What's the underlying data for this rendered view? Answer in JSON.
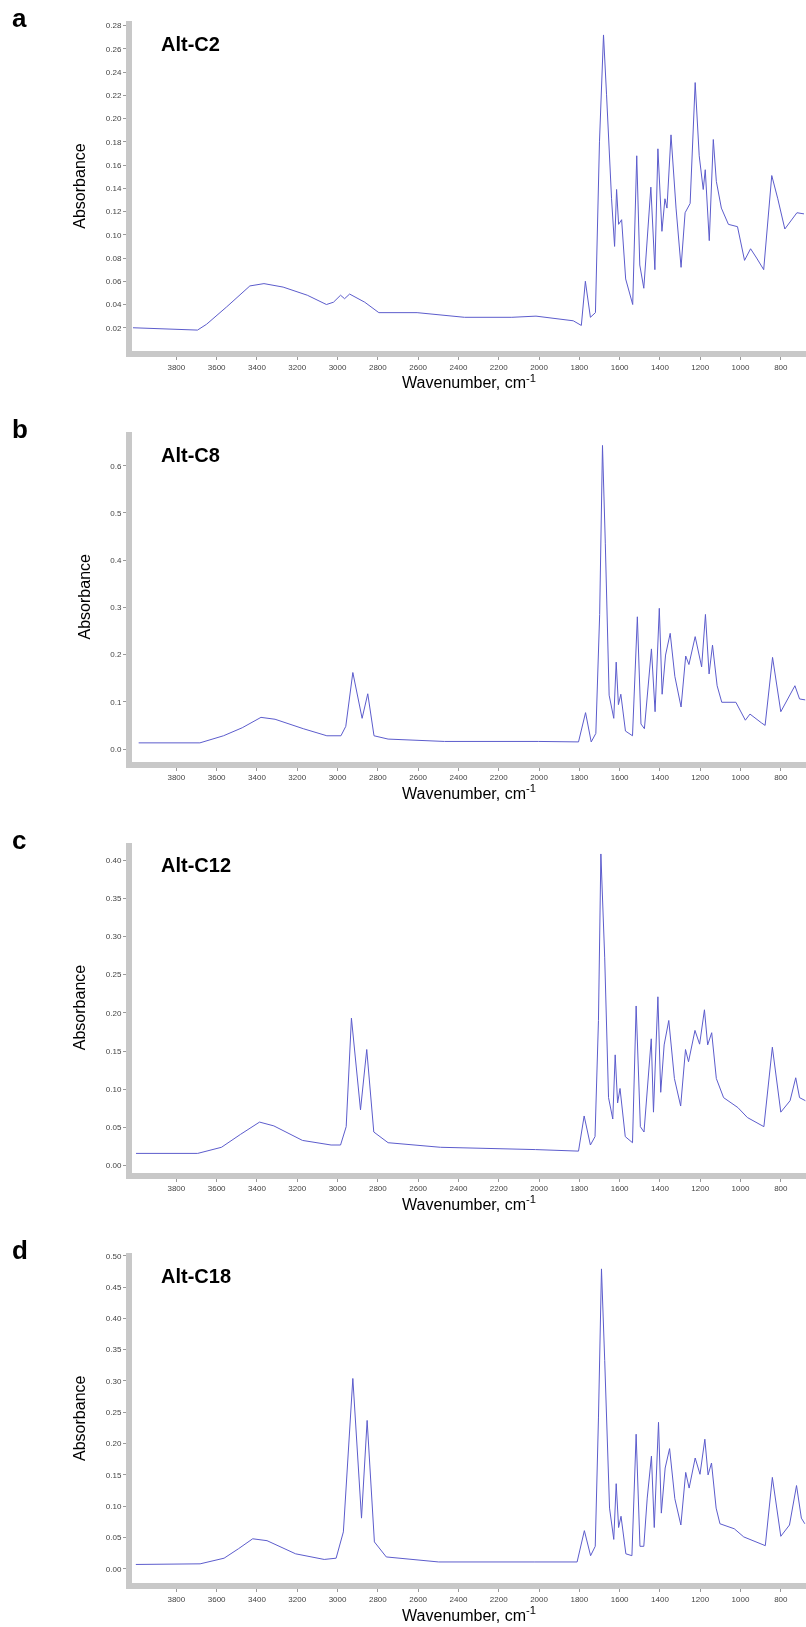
{
  "chart_data": [
    {
      "type": "line",
      "title": "Alt-C2",
      "annotations": [
        "a"
      ],
      "xlabel": "Wavenumber, cm$^{-1}$",
      "ylabel": "Absorbance",
      "color": "#5c5ccc",
      "grid": false,
      "marker": "none",
      "line_style": "solid",
      "x": [
        4015,
        3695,
        3650,
        3550,
        3435,
        3365,
        3270,
        3150,
        3055,
        3020,
        2985,
        2965,
        2940,
        2865,
        2795,
        2605,
        2370,
        2135,
        2015,
        1830,
        1790,
        1770,
        1745,
        1720,
        1700,
        1680,
        1665,
        1640,
        1625,
        1615,
        1605,
        1590,
        1570,
        1535,
        1515,
        1500,
        1480,
        1445,
        1425,
        1410,
        1390,
        1375,
        1365,
        1345,
        1320,
        1295,
        1275,
        1250,
        1225,
        1205,
        1185,
        1175,
        1155,
        1135,
        1120,
        1095,
        1060,
        1015,
        980,
        950,
        920,
        885,
        845,
        815,
        780,
        720,
        685
      ],
      "values": [
        0.02,
        0.018,
        0.023,
        0.038,
        0.056,
        0.058,
        0.055,
        0.048,
        0.04,
        0.042,
        0.048,
        0.045,
        0.049,
        0.042,
        0.033,
        0.033,
        0.029,
        0.029,
        0.03,
        0.026,
        0.022,
        0.06,
        0.029,
        0.033,
        0.18,
        0.272,
        0.221,
        0.131,
        0.09,
        0.139,
        0.109,
        0.113,
        0.062,
        0.04,
        0.168,
        0.074,
        0.054,
        0.141,
        0.07,
        0.174,
        0.103,
        0.131,
        0.123,
        0.186,
        0.123,
        0.072,
        0.119,
        0.127,
        0.231,
        0.168,
        0.139,
        0.156,
        0.095,
        0.182,
        0.146,
        0.123,
        0.109,
        0.107,
        0.078,
        0.088,
        0.08,
        0.07,
        0.151,
        0.131,
        0.105,
        0.119,
        0.118
      ],
      "xlim": [
        4020,
        675
      ],
      "xticks": [
        3800,
        3600,
        3400,
        3200,
        3000,
        2800,
        2600,
        2400,
        2200,
        2000,
        1800,
        1600,
        1400,
        1200,
        1000,
        800
      ],
      "ylim": [
        0.0,
        0.284
      ],
      "yticks": [
        0.02,
        0.04,
        0.06,
        0.08,
        {
          "value": 0.1,
          "label": "0.10"
        },
        0.12,
        0.14,
        0.16,
        0.18,
        {
          "value": 0.2,
          "label": "0.20"
        },
        0.22,
        0.24,
        0.26,
        0.28
      ]
    },
    {
      "type": "line",
      "title": "Alt-C8",
      "annotations": [
        "b"
      ],
      "xlabel": "Wavenumber, cm$^{-1}$",
      "ylabel": "Absorbance",
      "color": "#5c5ccc",
      "grid": false,
      "marker": "none",
      "line_style": "solid",
      "x": [
        3987,
        3683,
        3566,
        3473,
        3380,
        3310,
        3170,
        3053,
        2983,
        2959,
        2924,
        2878,
        2850,
        2819,
        2749,
        2469,
        2002,
        1804,
        1769,
        1741,
        1718,
        1699,
        1685,
        1671,
        1652,
        1629,
        1617,
        1606,
        1594,
        1571,
        1536,
        1512,
        1494,
        1477,
        1442,
        1424,
        1403,
        1389,
        1372,
        1349,
        1326,
        1295,
        1272,
        1256,
        1225,
        1193,
        1174,
        1156,
        1139,
        1116,
        1093,
        1023,
        976,
        953,
        895,
        878,
        841,
        800,
        730,
        707,
        679
      ],
      "values": [
        0.013,
        0.013,
        0.028,
        0.045,
        0.067,
        0.063,
        0.043,
        0.028,
        0.028,
        0.048,
        0.162,
        0.065,
        0.117,
        0.028,
        0.021,
        0.016,
        0.016,
        0.015,
        0.077,
        0.015,
        0.033,
        0.285,
        0.643,
        0.436,
        0.114,
        0.065,
        0.184,
        0.094,
        0.116,
        0.038,
        0.028,
        0.28,
        0.053,
        0.043,
        0.212,
        0.079,
        0.298,
        0.116,
        0.199,
        0.245,
        0.154,
        0.089,
        0.197,
        0.179,
        0.238,
        0.174,
        0.285,
        0.159,
        0.22,
        0.134,
        0.099,
        0.099,
        0.061,
        0.074,
        0.055,
        0.05,
        0.194,
        0.079,
        0.134,
        0.106,
        0.104
      ],
      "xlim": [
        4020,
        675
      ],
      "xticks": [
        3800,
        3600,
        3400,
        3200,
        3000,
        2800,
        2600,
        2400,
        2200,
        2000,
        1800,
        1600,
        1400,
        1200,
        1000,
        800
      ],
      "ylim": [
        -0.027,
        0.672
      ],
      "yticks": [
        {
          "value": 0.0,
          "label": "0.0"
        },
        0.1,
        0.2,
        0.3,
        0.4,
        0.5,
        0.6
      ]
    },
    {
      "type": "line",
      "title": "Alt-C12",
      "annotations": [
        "c"
      ],
      "xlabel": "Wavenumber, cm$^{-1}$",
      "ylabel": "Absorbance",
      "color": "#5c5ccc",
      "grid": false,
      "marker": "none",
      "line_style": "solid",
      "x": [
        4000,
        3694,
        3576,
        3481,
        3387,
        3316,
        3174,
        3032,
        2985,
        2957,
        2931,
        2886,
        2855,
        2820,
        2749,
        2489,
        2017,
        1804,
        1776,
        1745,
        1722,
        1705,
        1693,
        1674,
        1655,
        1634,
        1622,
        1610,
        1598,
        1572,
        1536,
        1518,
        1497,
        1479,
        1443,
        1432,
        1410,
        1396,
        1379,
        1356,
        1328,
        1297,
        1273,
        1258,
        1226,
        1203,
        1179,
        1163,
        1143,
        1120,
        1084,
        1013,
        966,
        884,
        842,
        800,
        754,
        726,
        707,
        678
      ],
      "values": [
        0.016,
        0.016,
        0.024,
        0.041,
        0.057,
        0.052,
        0.033,
        0.027,
        0.027,
        0.051,
        0.193,
        0.073,
        0.152,
        0.044,
        0.03,
        0.024,
        0.021,
        0.019,
        0.065,
        0.027,
        0.038,
        0.19,
        0.408,
        0.272,
        0.089,
        0.061,
        0.145,
        0.082,
        0.101,
        0.038,
        0.03,
        0.209,
        0.051,
        0.044,
        0.166,
        0.07,
        0.221,
        0.096,
        0.158,
        0.19,
        0.114,
        0.078,
        0.152,
        0.136,
        0.177,
        0.159,
        0.204,
        0.158,
        0.174,
        0.114,
        0.089,
        0.076,
        0.063,
        0.051,
        0.155,
        0.07,
        0.085,
        0.115,
        0.089,
        0.085
      ],
      "xlim": [
        4020,
        675
      ],
      "xticks": [
        3800,
        3600,
        3400,
        3200,
        3000,
        2800,
        2600,
        2400,
        2200,
        2000,
        1800,
        1600,
        1400,
        1200,
        1000,
        800
      ],
      "ylim": [
        -0.009,
        0.423
      ],
      "yticks": [
        {
          "value": 0.0,
          "label": "0.00"
        },
        0.05,
        {
          "value": 0.1,
          "label": "0.10"
        },
        0.15,
        {
          "value": 0.2,
          "label": "0.20"
        },
        0.25,
        {
          "value": 0.3,
          "label": "0.30"
        },
        0.35,
        {
          "value": 0.4,
          "label": "0.40"
        }
      ]
    },
    {
      "type": "line",
      "title": "Alt-C18",
      "annotations": [
        "d"
      ],
      "xlabel": "Wavenumber, cm$^{-1}$",
      "ylabel": "Absorbance",
      "color": "#5c5ccc",
      "grid": false,
      "marker": "none",
      "line_style": "solid",
      "x": [
        4001,
        3682,
        3563,
        3492,
        3421,
        3350,
        3208,
        3066,
        3007,
        2971,
        2924,
        2881,
        2853,
        2817,
        2758,
        2498,
        2024,
        1811,
        1775,
        1744,
        1721,
        1705,
        1690,
        1674,
        1650,
        1629,
        1617,
        1605,
        1593,
        1569,
        1539,
        1518,
        1499,
        1480,
        1463,
        1442,
        1428,
        1407,
        1393,
        1374,
        1352,
        1326,
        1296,
        1272,
        1255,
        1225,
        1201,
        1177,
        1161,
        1144,
        1121,
        1102,
        1031,
        984,
        877,
        842,
        800,
        757,
        722,
        698,
        681
      ],
      "values": [
        0.007,
        0.008,
        0.017,
        0.032,
        0.048,
        0.045,
        0.024,
        0.015,
        0.017,
        0.059,
        0.304,
        0.081,
        0.237,
        0.043,
        0.019,
        0.011,
        0.011,
        0.011,
        0.061,
        0.021,
        0.036,
        0.241,
        0.479,
        0.333,
        0.097,
        0.047,
        0.136,
        0.066,
        0.084,
        0.024,
        0.021,
        0.215,
        0.036,
        0.036,
        0.113,
        0.18,
        0.066,
        0.234,
        0.089,
        0.161,
        0.192,
        0.112,
        0.07,
        0.154,
        0.129,
        0.177,
        0.151,
        0.207,
        0.15,
        0.169,
        0.097,
        0.072,
        0.064,
        0.051,
        0.037,
        0.146,
        0.052,
        0.07,
        0.133,
        0.081,
        0.072
      ],
      "xlim": [
        4020,
        675
      ],
      "xticks": [
        3800,
        3600,
        3400,
        3200,
        3000,
        2800,
        2600,
        2400,
        2200,
        2000,
        1800,
        1600,
        1400,
        1200,
        1000,
        800
      ],
      "ylim": [
        -0.023,
        0.504
      ],
      "yticks": [
        {
          "value": 0.0,
          "label": "0.00"
        },
        0.05,
        {
          "value": 0.1,
          "label": "0.10"
        },
        0.15,
        {
          "value": 0.2,
          "label": "0.20"
        },
        0.25,
        {
          "value": 0.3,
          "label": "0.30"
        },
        0.35,
        {
          "value": 0.4,
          "label": "0.40"
        },
        0.45,
        {
          "value": 0.5,
          "label": "0.50"
        }
      ]
    }
  ]
}
